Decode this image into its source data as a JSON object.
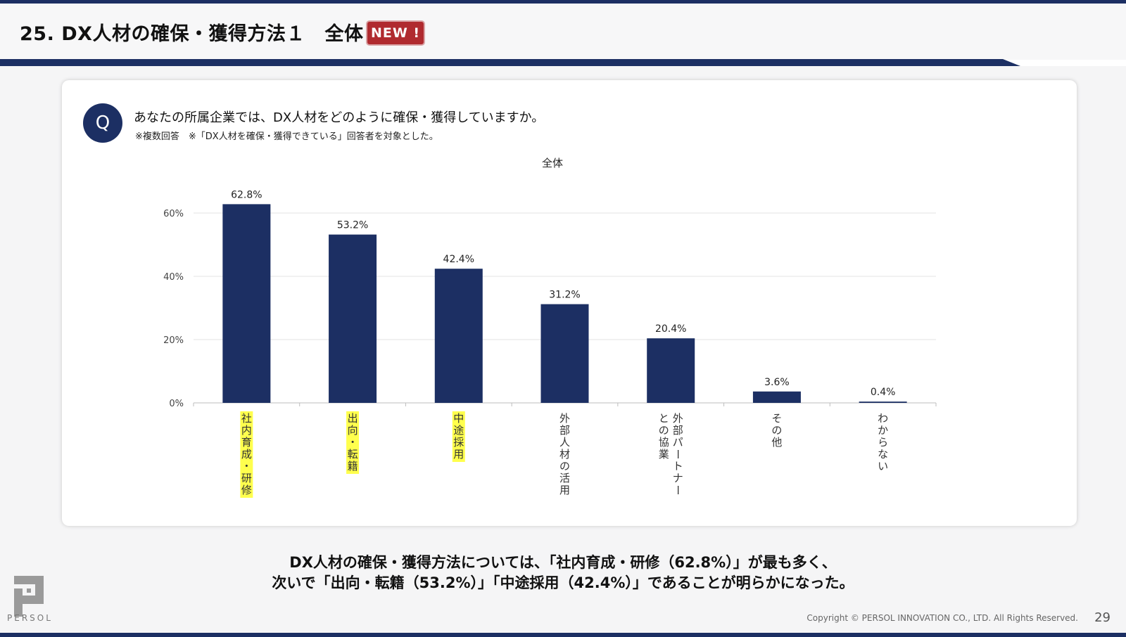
{
  "header": {
    "title": "25. DX人材の確保・獲得方法１　全体",
    "badge": "NEW !"
  },
  "question": {
    "icon_label": "Q",
    "text": "あなたの所属企業では、DX人材をどのように確保・獲得していますか。",
    "note": "※複数回答　※「DX人材を確保・獲得できている」回答者を対象とした。"
  },
  "chart_data": {
    "type": "bar",
    "title": "全体",
    "categories": [
      "社内育成・研修",
      "出向・転籍",
      "中途採用",
      "外部人材の活用",
      "外部パートナーとの協業",
      "その他",
      "わからない"
    ],
    "category_lines": [
      [
        "社内育成・研修"
      ],
      [
        "出向・転籍"
      ],
      [
        "中途採用"
      ],
      [
        "外部人材の活用"
      ],
      [
        "外部パートナー",
        "との協業"
      ],
      [
        "その他"
      ],
      [
        "わからない"
      ]
    ],
    "values": [
      62.8,
      53.2,
      42.4,
      31.2,
      20.4,
      3.6,
      0.4
    ],
    "data_labels": [
      "62.8%",
      "53.2%",
      "42.4%",
      "31.2%",
      "20.4%",
      "3.6%",
      "0.4%"
    ],
    "highlighted": [
      true,
      true,
      true,
      false,
      false,
      false,
      false
    ],
    "ylim": [
      0,
      60
    ],
    "y_ticks": [
      0,
      20,
      40,
      60
    ],
    "y_tick_labels": [
      "0%",
      "20%",
      "40%",
      "60%"
    ],
    "grid": true,
    "xlabel": "",
    "ylabel": ""
  },
  "summary": {
    "line1": "DX人材の確保・獲得方法については、「社内育成・研修（62.8%）」が最も多く、",
    "line2": "次いで「出向・転籍（53.2%）」「中途採用（42.4%）」であることが明らかになった。"
  },
  "footer": {
    "logo_text": "PERSOL",
    "copyright": "Copyright © PERSOL INNOVATION CO., LTD. All Rights Reserved.",
    "page_number": "29"
  },
  "colors": {
    "navy": "#1c2f63",
    "bar": "#1c2f63",
    "badge_red": "#b02a2f",
    "highlight": "#ffff4d",
    "grid": "#e3e3e3"
  }
}
